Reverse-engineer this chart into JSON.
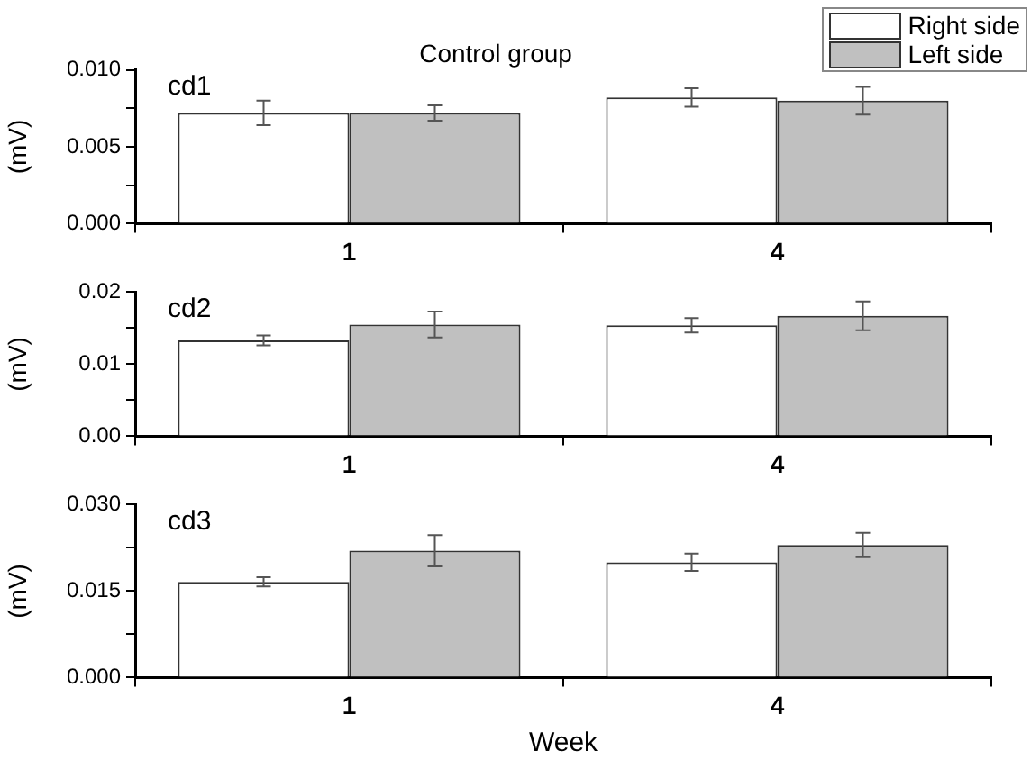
{
  "chart_data": [
    {
      "type": "bar",
      "title": "Control group",
      "categories": [
        "1",
        "4"
      ],
      "ylabel": "(mV)",
      "annotations": [
        "cd1"
      ],
      "legend": "top right",
      "grid": false,
      "ylim": [
        0,
        0.01
      ],
      "yticks": [
        {
          "value": 0,
          "label": "0.000"
        },
        {
          "value": 0.0025,
          "label": null
        },
        {
          "value": 0.005,
          "label": "0.005"
        },
        {
          "value": 0.0075,
          "label": null
        },
        {
          "value": 0.01,
          "label": "0.010"
        }
      ],
      "series": [
        {
          "name": "Right side",
          "color": "#ffffff",
          "values": [
            0.0072,
            0.0082
          ],
          "errors": [
            0.0008,
            0.0006
          ]
        },
        {
          "name": "Left side",
          "color": "#c0c0c0",
          "values": [
            0.0072,
            0.008
          ],
          "errors": [
            0.0005,
            0.0009
          ]
        }
      ]
    },
    {
      "type": "bar",
      "categories": [
        "1",
        "4"
      ],
      "ylabel": "(mV)",
      "annotations": [
        "cd2"
      ],
      "grid": false,
      "ylim": [
        0,
        0.02
      ],
      "yticks": [
        {
          "value": 0,
          "label": "0.00"
        },
        {
          "value": 0.005,
          "label": null
        },
        {
          "value": 0.01,
          "label": "0.01"
        },
        {
          "value": 0.015,
          "label": null
        },
        {
          "value": 0.02,
          "label": "0.02"
        }
      ],
      "series": [
        {
          "color": "#ffffff",
          "values": [
            0.0133,
            0.0154
          ],
          "errors": [
            0.0007,
            0.001
          ]
        },
        {
          "color": "#c0c0c0",
          "values": [
            0.0155,
            0.0167
          ],
          "errors": [
            0.0018,
            0.002
          ]
        }
      ]
    },
    {
      "type": "bar",
      "categories": [
        "1",
        "4"
      ],
      "ylabel": "(mV)",
      "xlabel": "Week",
      "annotations": [
        "cd3"
      ],
      "grid": false,
      "ylim": [
        0,
        0.03
      ],
      "yticks": [
        {
          "value": 0,
          "label": "0.000"
        },
        {
          "value": 0.0075,
          "label": null
        },
        {
          "value": 0.015,
          "label": "0.015"
        },
        {
          "value": 0.0225,
          "label": null
        },
        {
          "value": 0.03,
          "label": "0.030"
        }
      ],
      "series": [
        {
          "color": "#ffffff",
          "values": [
            0.0166,
            0.02
          ],
          "errors": [
            0.0008,
            0.0015
          ]
        },
        {
          "color": "#c0c0c0",
          "values": [
            0.022,
            0.023
          ],
          "errors": [
            0.0027,
            0.0021
          ]
        }
      ]
    }
  ]
}
